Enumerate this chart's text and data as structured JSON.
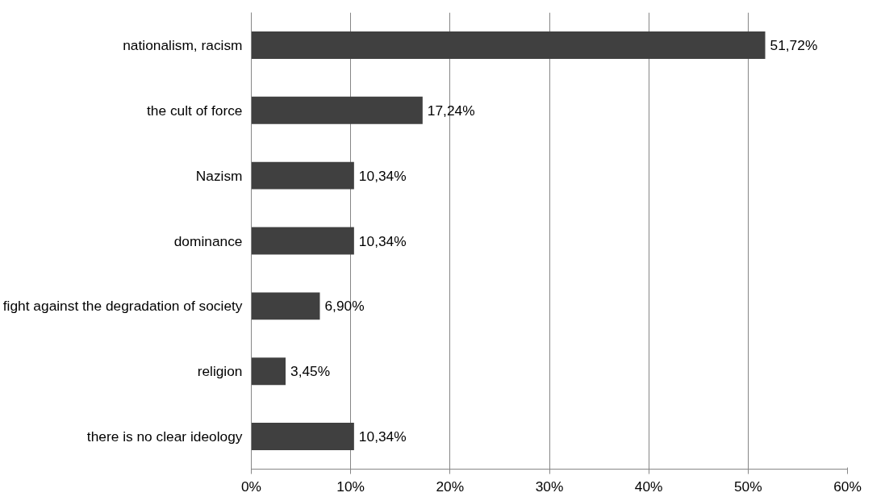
{
  "chart_data": {
    "type": "bar",
    "orientation": "horizontal",
    "categories": [
      "nationalism, racism",
      "the cult of force",
      "Nazism",
      "dominance",
      "fight against the degradation of society",
      "religion",
      "there is no clear ideology"
    ],
    "values": [
      51.72,
      17.24,
      10.34,
      10.34,
      6.9,
      3.45,
      10.34
    ],
    "value_labels": [
      "51,72%",
      "17,24%",
      "10,34%",
      "10,34%",
      "6,90%",
      "3,45%",
      "10,34%"
    ],
    "color": "#404040",
    "xlim": [
      0,
      60
    ],
    "xticks": [
      {
        "value": 0,
        "label": "0%"
      },
      {
        "value": 10,
        "label": "10%"
      },
      {
        "value": 20,
        "label": "20%"
      },
      {
        "value": 30,
        "label": "30%"
      },
      {
        "value": 40,
        "label": "40%"
      },
      {
        "value": 50,
        "label": "50%"
      },
      {
        "value": 60,
        "label": "60%"
      }
    ],
    "grid": "x"
  }
}
